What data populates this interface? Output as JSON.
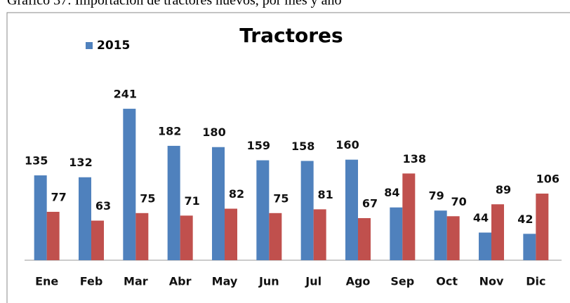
{
  "caption": "Gráfico 37: Importación de tractores nuevos, por mes y año",
  "chart_data": {
    "type": "bar",
    "title": "Tractores",
    "categories": [
      "Ene",
      "Feb",
      "Mar",
      "Abr",
      "May",
      "Jun",
      "Jul",
      "Ago",
      "Sep",
      "Oct",
      "Nov",
      "Dic"
    ],
    "series": [
      {
        "name": "2015",
        "color": "#4f81bd",
        "values": [
          135,
          132,
          241,
          182,
          180,
          159,
          158,
          160,
          84,
          79,
          44,
          42
        ]
      },
      {
        "color": "#c0504d",
        "values": [
          77,
          63,
          75,
          71,
          82,
          75,
          81,
          67,
          138,
          70,
          89,
          106
        ]
      }
    ],
    "ylim": [
      0,
      250
    ],
    "legend": "top-left"
  }
}
